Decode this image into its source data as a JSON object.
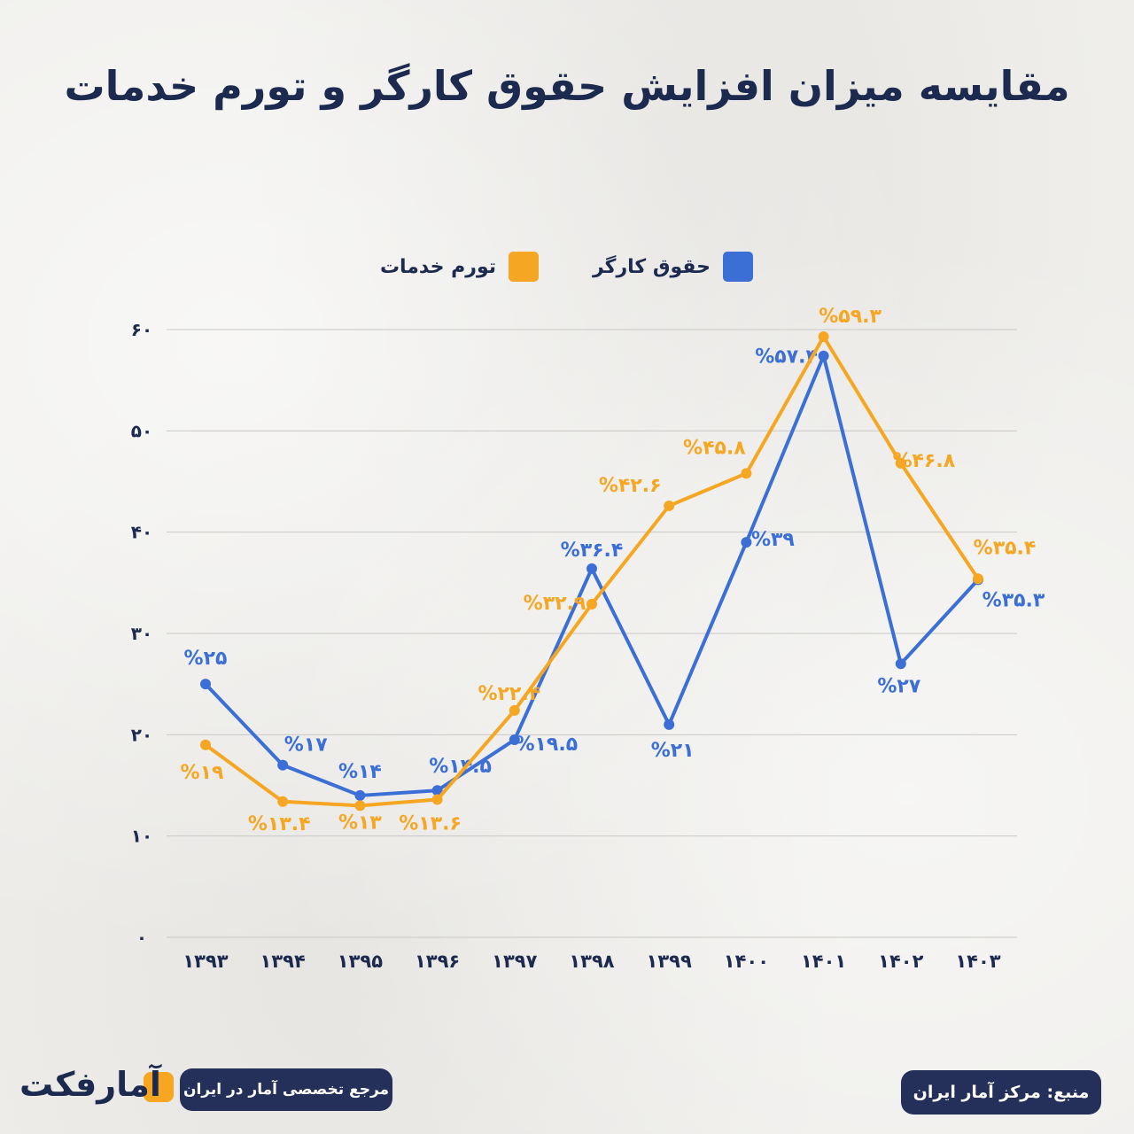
{
  "title": "مقایسه میزان افزایش حقوق کارگر و تورم خدمات",
  "legend": {
    "wage": "حقوق کارگر",
    "inflation": "تورم خدمات"
  },
  "colors": {
    "wage": "#3b6fd6",
    "inflation": "#f5a623",
    "title": "#1d2a4f",
    "grid": "#c9c8c4",
    "footer_bg": "#24305a"
  },
  "chart_data": {
    "type": "line",
    "title": "مقایسه میزان افزایش حقوق کارگر و تورم خدمات",
    "categories": [
      "۱۳۹۳",
      "۱۳۹۴",
      "۱۳۹۵",
      "۱۳۹۶",
      "۱۳۹۷",
      "۱۳۹۸",
      "۱۳۹۹",
      "۱۴۰۰",
      "۱۴۰۱",
      "۱۴۰۲",
      "۱۴۰۳"
    ],
    "series": [
      {
        "name": "حقوق کارگر",
        "color": "#3b6fd6",
        "values": [
          25,
          17,
          14,
          14.5,
          19.5,
          36.4,
          21,
          39,
          57.4,
          27,
          35.3
        ],
        "labels": [
          "%۲۵",
          "%۱۷",
          "%۱۴",
          "%۱۴.۵",
          "%۱۹.۵",
          "%۳۶.۴",
          "%۲۱",
          "%۳۹",
          "%۵۷.۴",
          "%۲۷",
          "%۳۵.۳"
        ]
      },
      {
        "name": "تورم خدمات",
        "color": "#f5a623",
        "values": [
          19,
          13.4,
          13,
          13.6,
          22.4,
          32.9,
          42.6,
          45.8,
          59.3,
          46.8,
          35.4
        ],
        "labels": [
          "%۱۹",
          "%۱۳.۴",
          "%۱۳",
          "%۱۳.۶",
          "%۲۲.۴",
          "%۳۲.۹",
          "%۴۲.۶",
          "%۴۵.۸",
          "%۵۹.۳",
          "%۴۶.۸",
          "%۳۵.۴"
        ]
      }
    ],
    "yticks": [
      0,
      10,
      20,
      30,
      40,
      50,
      60
    ],
    "ytick_labels": [
      "۰",
      "۱۰",
      "۲۰",
      "۳۰",
      "۴۰",
      "۵۰",
      "۶۰"
    ],
    "ylim": [
      0,
      60
    ],
    "grid": true,
    "legend_position": "top-center"
  },
  "footer": {
    "tagline": "مرجع تخصصی آمار در ایران",
    "source": "منبع: مرکز آمار ایران",
    "logo_text": "آمارفکت"
  }
}
